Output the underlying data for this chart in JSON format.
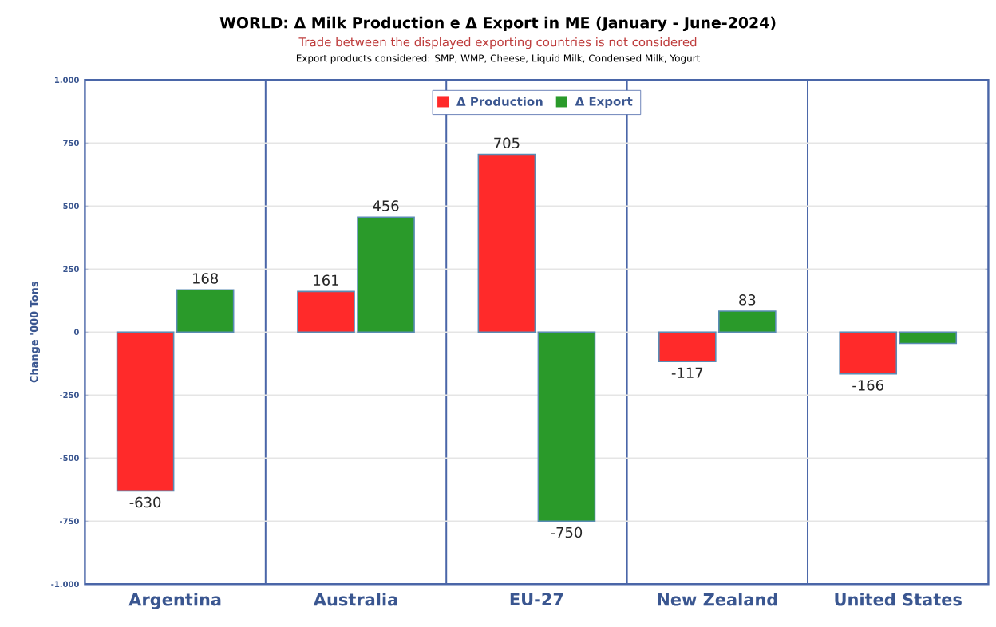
{
  "chart_data": {
    "type": "bar",
    "title": "WORLD: Δ Milk Production e Δ Export in ME (January - June-2024)",
    "subtitle": "Trade between the displayed exporting countries is not considered",
    "annotations": [
      "Export products considered: SMP, WMP, Cheese, Liquid Milk, Condensed Milk, Yogurt"
    ],
    "ylabel": "Change '000 Tons",
    "categories": [
      "Argentina",
      "Australia",
      "EU-27",
      "New Zealand",
      "United States"
    ],
    "series": [
      {
        "name": "Δ Production",
        "color": "#ff2a2a",
        "values": [
          -630,
          161,
          705,
          -117,
          -166
        ],
        "value_labels": [
          "-630",
          "161",
          "705",
          "-117",
          "-166"
        ]
      },
      {
        "name": "Δ Export",
        "color": "#2a9a2a",
        "values": [
          168,
          456,
          -750,
          83,
          -45
        ],
        "value_labels": [
          "168",
          "456",
          "-750",
          "83",
          null
        ]
      }
    ],
    "ylim": [
      -1000,
      1000
    ],
    "yticks": [
      {
        "value": -1000,
        "label": "-1.000"
      },
      -750,
      -500,
      -250,
      0,
      250,
      500,
      750,
      {
        "value": 1000,
        "label": "1.000"
      }
    ],
    "grid": "y",
    "legend": "top"
  }
}
